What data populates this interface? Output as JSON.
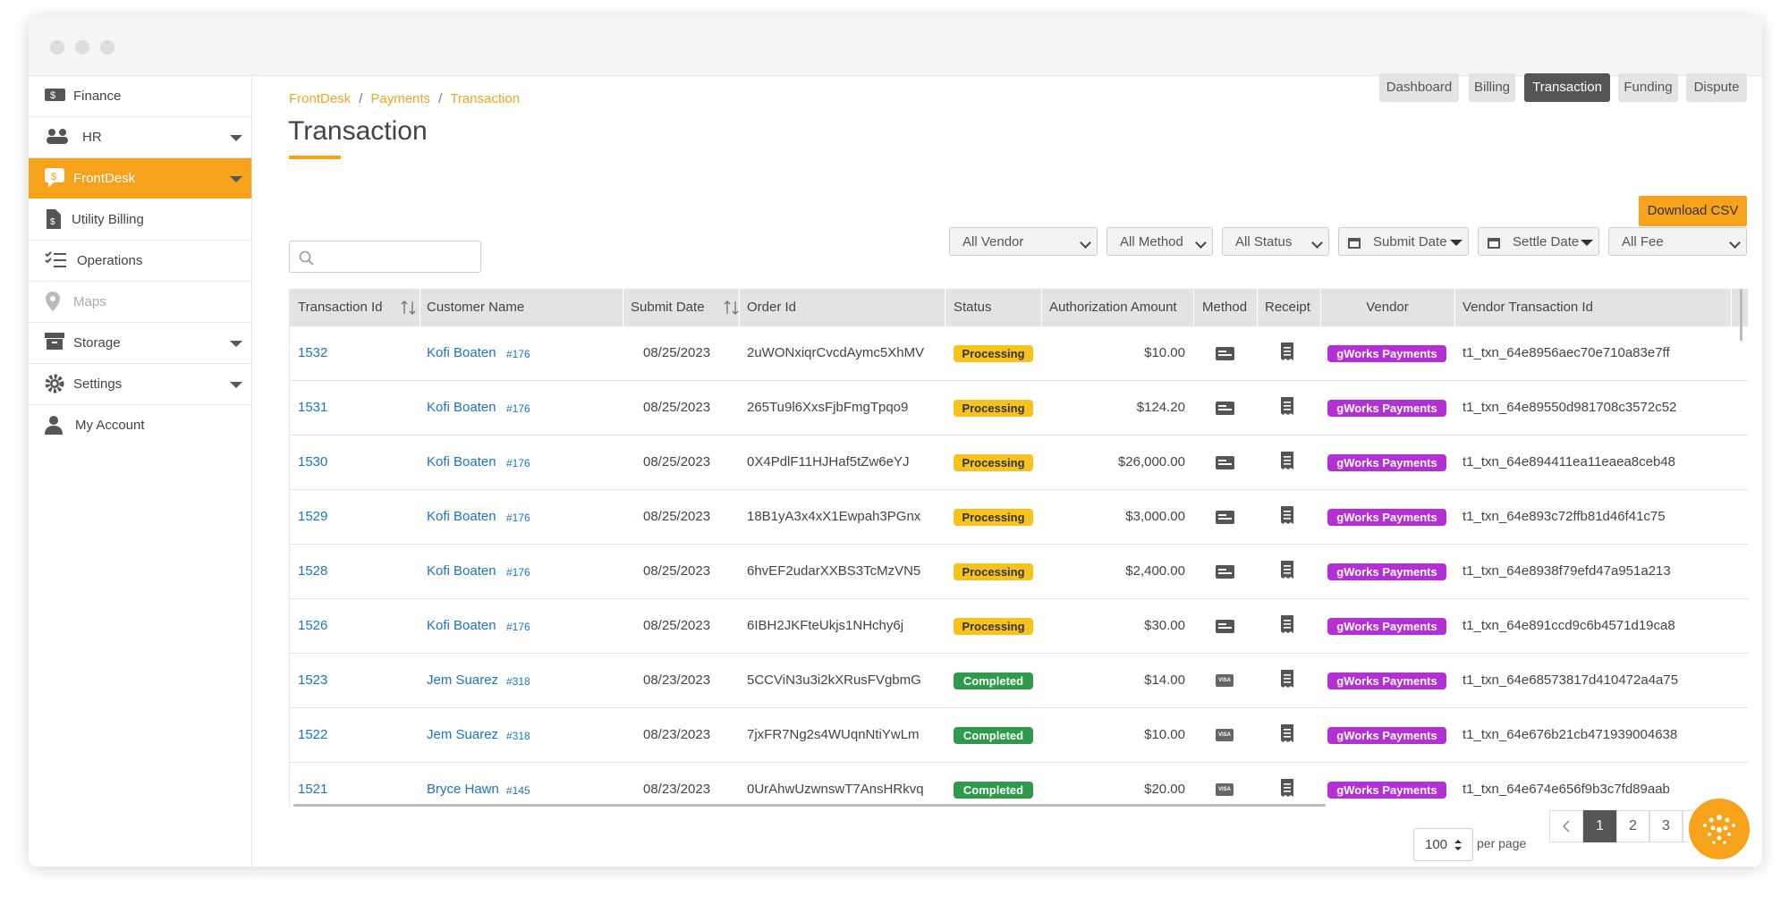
{
  "sidebar": {
    "items": [
      "Finance",
      "HR",
      "FrontDesk",
      "Utility Billing",
      "Operations",
      "Maps",
      "Storage",
      "Settings",
      "My Account"
    ]
  },
  "breadcrumb": [
    "FrontDesk",
    "Payments",
    "Transaction"
  ],
  "title": "Transaction",
  "tabs": [
    "Dashboard",
    "Billing",
    "Transaction",
    "Funding",
    "Dispute"
  ],
  "download_button": "Download CSV",
  "filters": [
    "All Vendor",
    "All Method",
    "All Status",
    "Submit Date",
    "Settle Date",
    "All Fee"
  ],
  "table": {
    "columns": [
      "Transaction Id",
      "Customer Name",
      "Submit Date",
      "Order Id",
      "Status",
      "Authorization Amount",
      "Method",
      "Receipt",
      "Vendor",
      "Vendor Transaction Id"
    ],
    "rows": [
      {
        "id": "1532",
        "customer": "Kofi Boaten",
        "customer_id": "#176",
        "submit_date": "08/25/2023",
        "order_id": "2uWONxiqrCvcdAymc5XhMV",
        "status": "Processing",
        "amount": "$10.00",
        "vendor": "gWorks Payments",
        "vendor_txn_id": "t1_txn_64e8956aec70e710a83e7ff"
      },
      {
        "id": "1531",
        "customer": "Kofi Boaten",
        "customer_id": "#176",
        "submit_date": "08/25/2023",
        "order_id": "265Tu9l6XxsFjbFmgTpqo9",
        "status": "Processing",
        "amount": "$124.20",
        "vendor": "gWorks Payments",
        "vendor_txn_id": "t1_txn_64e89550d981708c3572c52"
      },
      {
        "id": "1530",
        "customer": "Kofi Boaten",
        "customer_id": "#176",
        "submit_date": "08/25/2023",
        "order_id": "0X4PdlF11HJHaf5tZw6eYJ",
        "status": "Processing",
        "amount": "$26,000.00",
        "vendor": "gWorks Payments",
        "vendor_txn_id": "t1_txn_64e894411ea11eaea8ceb48"
      },
      {
        "id": "1529",
        "customer": "Kofi Boaten",
        "customer_id": "#176",
        "submit_date": "08/25/2023",
        "order_id": "18B1yA3x4xX1Ewpah3PGnx",
        "status": "Processing",
        "amount": "$3,000.00",
        "vendor": "gWorks Payments",
        "vendor_txn_id": "t1_txn_64e893c72ffb81d46f41c75"
      },
      {
        "id": "1528",
        "customer": "Kofi Boaten",
        "customer_id": "#176",
        "submit_date": "08/25/2023",
        "order_id": "6hvEF2udarXXBS3TcMzVN5",
        "status": "Processing",
        "amount": "$2,400.00",
        "vendor": "gWorks Payments",
        "vendor_txn_id": "t1_txn_64e8938f79efd47a951a213"
      },
      {
        "id": "1526",
        "customer": "Kofi Boaten",
        "customer_id": "#176",
        "submit_date": "08/25/2023",
        "order_id": "6IBH2JKFteUkjs1NHchy6j",
        "status": "Processing",
        "amount": "$30.00",
        "vendor": "gWorks Payments",
        "vendor_txn_id": "t1_txn_64e891ccd9c6b4571d19ca8"
      },
      {
        "id": "1523",
        "customer": "Jem Suarez",
        "customer_id": "#318",
        "submit_date": "08/23/2023",
        "order_id": "5CCViN3u3i2kXRusFVgbmG",
        "status": "Completed",
        "amount": "$14.00",
        "method": "VISA",
        "vendor": "gWorks Payments",
        "vendor_txn_id": "t1_txn_64e68573817d410472a4a75"
      },
      {
        "id": "1522",
        "customer": "Jem Suarez",
        "customer_id": "#318",
        "submit_date": "08/23/2023",
        "order_id": "7jxFR7Ng2s4WUqnNtiYwLm",
        "status": "Completed",
        "amount": "$10.00",
        "method": "VISA",
        "vendor": "gWorks Payments",
        "vendor_txn_id": "t1_txn_64e676b21cb471939004638"
      },
      {
        "id": "1521",
        "customer": "Bryce Hawn",
        "customer_id": "#145",
        "submit_date": "08/23/2023",
        "order_id": "0UrAhwUzwnswT7AnsHRkvq",
        "status": "Completed",
        "amount": "$20.00",
        "method": "VISA",
        "vendor": "gWorks Payments",
        "vendor_txn_id": "t1_txn_64e674e656f9b3c7fd89aab"
      }
    ]
  },
  "pagination": {
    "per_page": "100",
    "per_page_label": "per page",
    "pages": [
      "1",
      "2",
      "3"
    ]
  }
}
